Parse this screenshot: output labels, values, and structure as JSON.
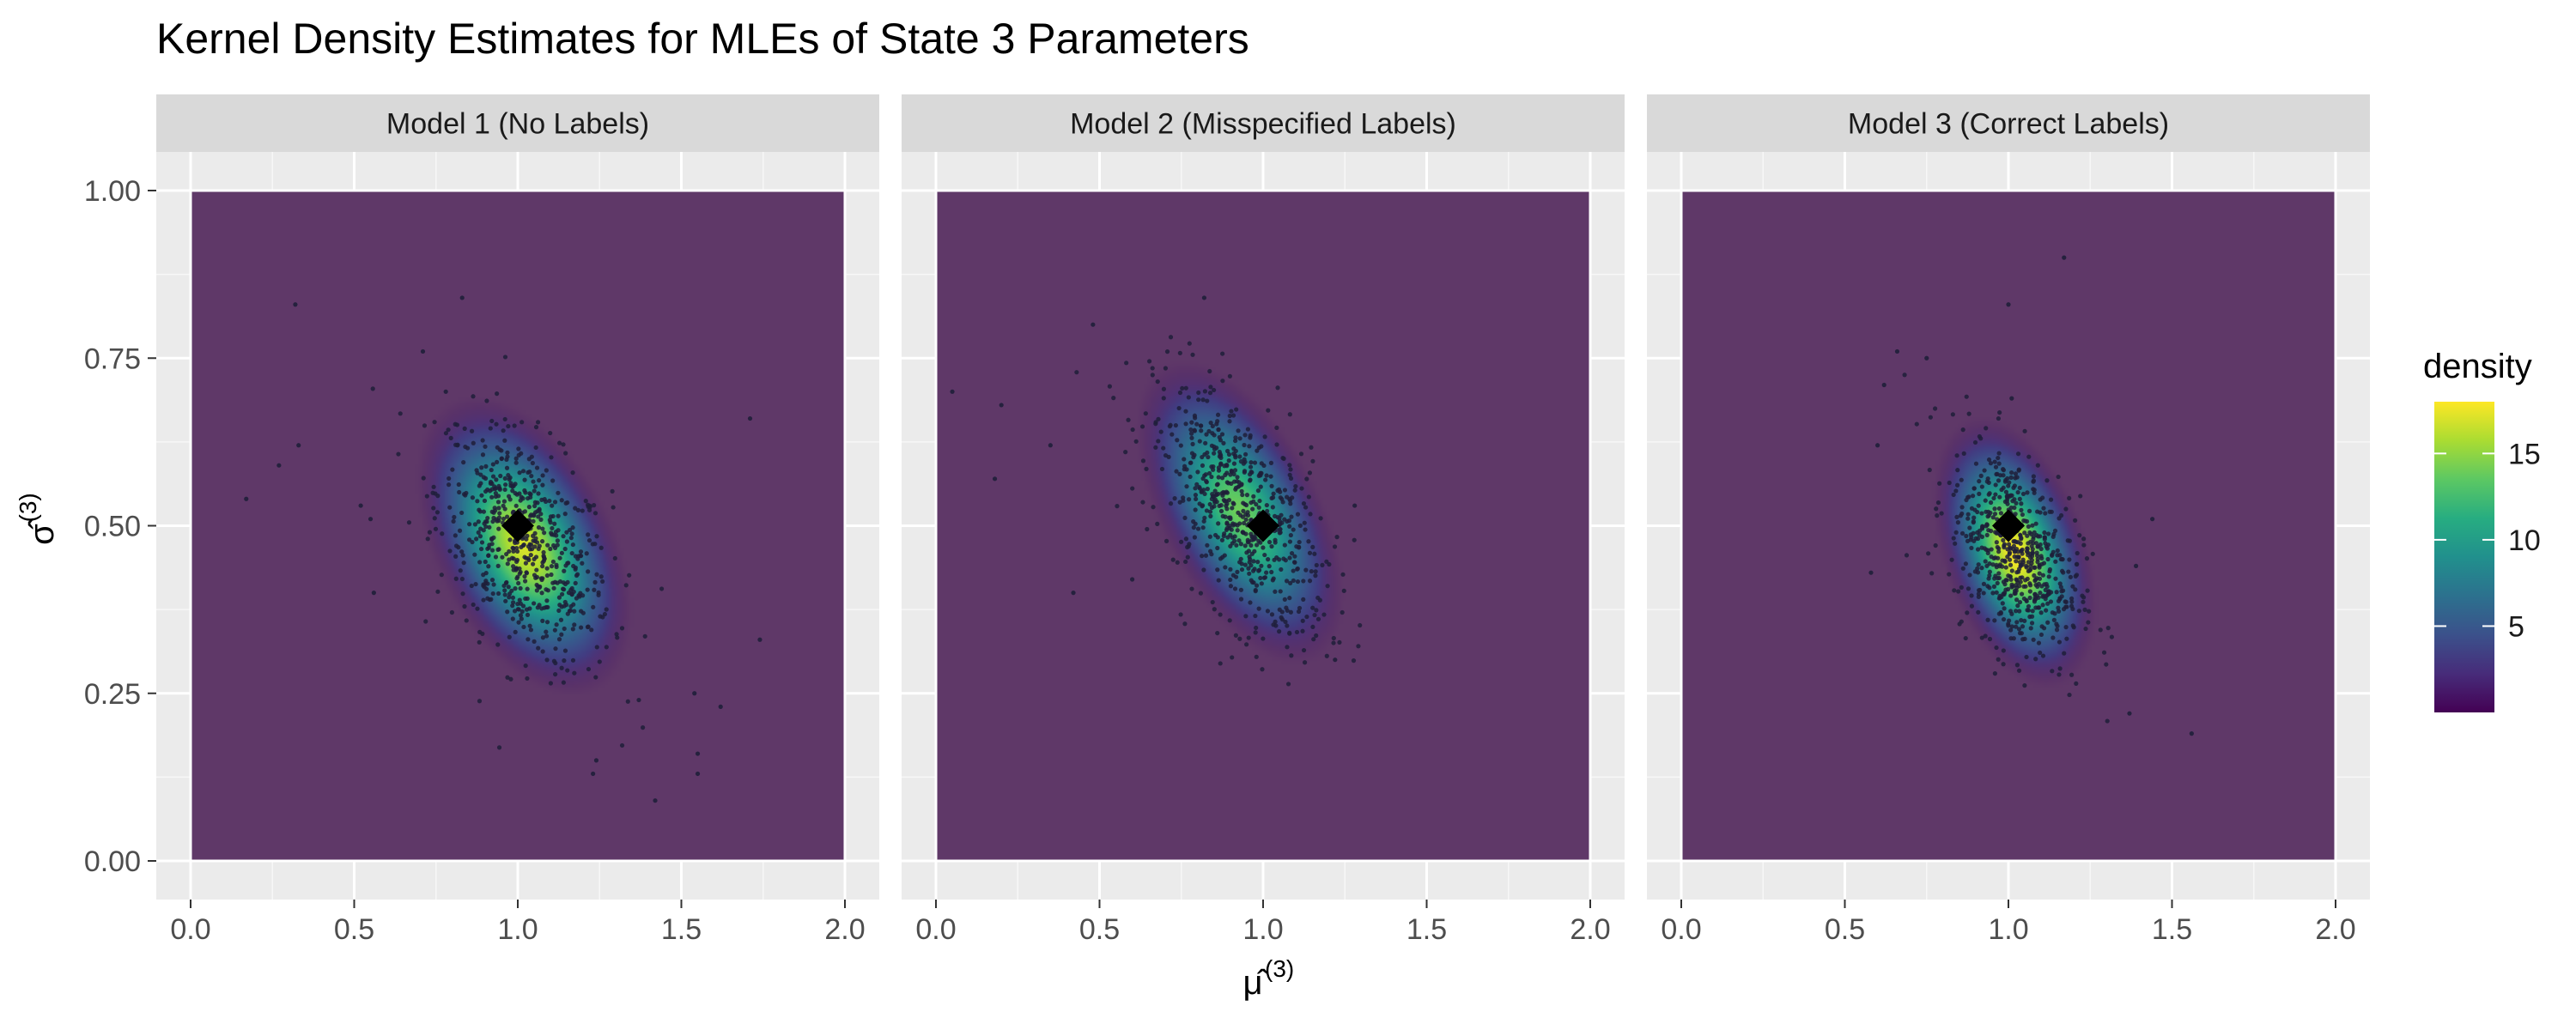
{
  "chart_data": {
    "type": "scatter",
    "title": "Kernel Density Estimates for MLEs of State 3 Parameters",
    "xlabel": {
      "base": "μ̂",
      "sup": "(3)"
    },
    "ylabel": {
      "base": "σ̂",
      "sup": "(3)"
    },
    "xlim": [
      0,
      2
    ],
    "ylim": [
      0,
      1
    ],
    "x_ticks": [
      "0.0",
      "0.5",
      "1.0",
      "1.5",
      "2.0"
    ],
    "y_ticks": [
      "0.00",
      "0.25",
      "0.50",
      "0.75",
      "1.00"
    ],
    "grid": true,
    "legend": {
      "title": "density",
      "placement": "right",
      "min": 0,
      "max": 18,
      "breaks": [
        5,
        10,
        15
      ],
      "colors": [
        "#440154",
        "#472C7A",
        "#3B518B",
        "#2C718E",
        "#21908D",
        "#27AD81",
        "#5CC863",
        "#AADC32",
        "#FDE725"
      ]
    },
    "colors": {
      "panel_background": "#EBEBEB",
      "grid": "#FFFFFF",
      "strip_background": "#D9D9D9",
      "density_base": "#5F3868",
      "point": "#1F1F3A",
      "true_value_marker": "#000000"
    },
    "panels": [
      {
        "label": "Model 1 (No Labels)",
        "density": {
          "center": [
            1.02,
            0.47
          ],
          "sd": [
            0.14,
            0.095
          ],
          "corr": -0.45,
          "peak": 17
        },
        "true_value": [
          1.0,
          0.5
        ],
        "outliers": [
          [
            0.32,
            0.83
          ],
          [
            0.17,
            0.54
          ],
          [
            0.27,
            0.59
          ],
          [
            0.33,
            0.62
          ],
          [
            0.83,
            0.84
          ],
          [
            0.71,
            0.76
          ],
          [
            0.78,
            0.7
          ],
          [
            0.52,
            0.53
          ],
          [
            0.56,
            0.4
          ],
          [
            0.55,
            0.51
          ],
          [
            1.71,
            0.66
          ],
          [
            1.74,
            0.33
          ],
          [
            1.54,
            0.25
          ],
          [
            1.55,
            0.16
          ],
          [
            1.55,
            0.13
          ],
          [
            1.42,
            0.09
          ],
          [
            1.23,
            0.13
          ],
          [
            1.24,
            0.15
          ],
          [
            1.62,
            0.23
          ],
          [
            1.37,
            0.24
          ]
        ]
      },
      {
        "label": "Model 2 (Misspecified Labels)",
        "density": {
          "center": [
            0.93,
            0.52
          ],
          "sd": [
            0.14,
            0.1
          ],
          "corr": -0.55,
          "peak": 14
        },
        "true_value": [
          1.0,
          0.5
        ],
        "outliers": [
          [
            0.05,
            0.7
          ],
          [
            0.18,
            0.57
          ],
          [
            0.42,
            0.4
          ],
          [
            0.48,
            0.8
          ],
          [
            0.82,
            0.84
          ],
          [
            0.2,
            0.68
          ],
          [
            0.6,
            0.42
          ],
          [
            1.22,
            0.3
          ],
          [
            1.28,
            0.53
          ],
          [
            0.35,
            0.62
          ]
        ]
      },
      {
        "label": "Model 3 (Correct Labels)",
        "density": {
          "center": [
            1.02,
            0.46
          ],
          "sd": [
            0.105,
            0.085
          ],
          "corr": -0.4,
          "peak": 18
        },
        "true_value": [
          1.0,
          0.5
        ],
        "outliers": [
          [
            1.17,
            0.9
          ],
          [
            1.0,
            0.83
          ],
          [
            0.58,
            0.43
          ],
          [
            0.66,
            0.76
          ],
          [
            0.62,
            0.71
          ],
          [
            0.75,
            0.75
          ],
          [
            1.37,
            0.22
          ],
          [
            1.56,
            0.19
          ],
          [
            1.44,
            0.51
          ],
          [
            1.39,
            0.44
          ],
          [
            0.6,
            0.62
          ],
          [
            1.01,
            0.69
          ]
        ]
      }
    ]
  }
}
